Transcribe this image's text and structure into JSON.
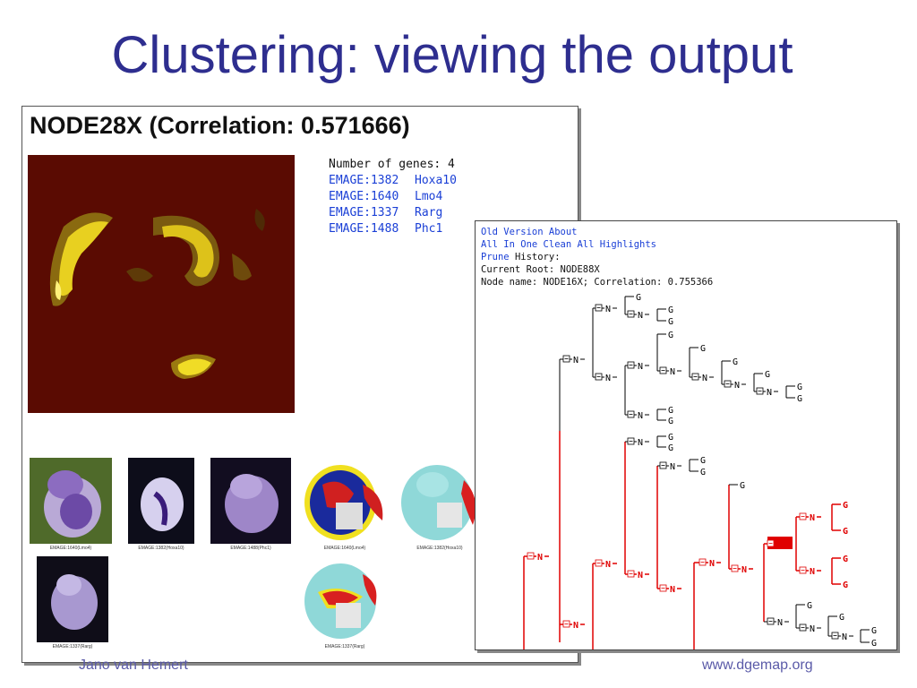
{
  "slide": {
    "title": "Clustering: viewing the output",
    "author": "Jano van Hemert",
    "website": "www.dgemap.org"
  },
  "cluster_panel": {
    "node_title": "NODE28X (Correlation: 0.571666)",
    "gene_count_label": "Number of genes: 4",
    "genes": [
      {
        "id": "EMAGE:1382",
        "name": "Hoxa10"
      },
      {
        "id": "EMAGE:1640",
        "name": "Lmo4"
      },
      {
        "id": "EMAGE:1337",
        "name": "Rarg"
      },
      {
        "id": "EMAGE:1488",
        "name": "Phc1"
      }
    ],
    "thumbnail_captions": [
      "EMAGE:1640(Lmo4)",
      "EMAGE:1382(Hoxa10)",
      "EMAGE:1488(Phc1)",
      "EMAGE:1640(Lmo4)",
      "EMAGE:1382(Hoxa10)",
      "EMAGE:1337(Rarg)",
      "EMAGE:1337(Rarg)"
    ]
  },
  "tree_panel": {
    "menu1": [
      "Old Version",
      "About"
    ],
    "menu2": [
      "All In One",
      "Clean All Highlights"
    ],
    "prune_label": "Prune",
    "history_label": "History:",
    "current_root": "Current Root: NODE88X",
    "node_info": "Node name: NODE16X; Correlation: 0.755366",
    "node_letter": "N",
    "gene_letter": "G",
    "colors": {
      "normal": "#000000",
      "highlight": "#e00000"
    }
  }
}
